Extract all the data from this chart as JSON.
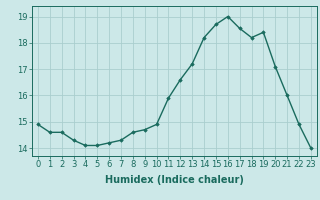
{
  "x": [
    0,
    1,
    2,
    3,
    4,
    5,
    6,
    7,
    8,
    9,
    10,
    11,
    12,
    13,
    14,
    15,
    16,
    17,
    18,
    19,
    20,
    21,
    22,
    23
  ],
  "y": [
    14.9,
    14.6,
    14.6,
    14.3,
    14.1,
    14.1,
    14.2,
    14.3,
    14.6,
    14.7,
    14.9,
    15.9,
    16.6,
    17.2,
    18.2,
    18.7,
    19.0,
    18.55,
    18.2,
    18.4,
    17.1,
    16.0,
    14.9,
    14.0
  ],
  "line_color": "#1a6b5e",
  "marker": "D",
  "marker_size": 1.8,
  "bg_color": "#cce8e8",
  "grid_color": "#aacece",
  "xlabel": "Humidex (Indice chaleur)",
  "xlabel_fontsize": 7,
  "tick_fontsize": 6,
  "ylim": [
    13.7,
    19.4
  ],
  "xlim": [
    -0.5,
    23.5
  ],
  "yticks": [
    14,
    15,
    16,
    17,
    18,
    19
  ],
  "xticks": [
    0,
    1,
    2,
    3,
    4,
    5,
    6,
    7,
    8,
    9,
    10,
    11,
    12,
    13,
    14,
    15,
    16,
    17,
    18,
    19,
    20,
    21,
    22,
    23
  ],
  "linewidth": 1.0
}
